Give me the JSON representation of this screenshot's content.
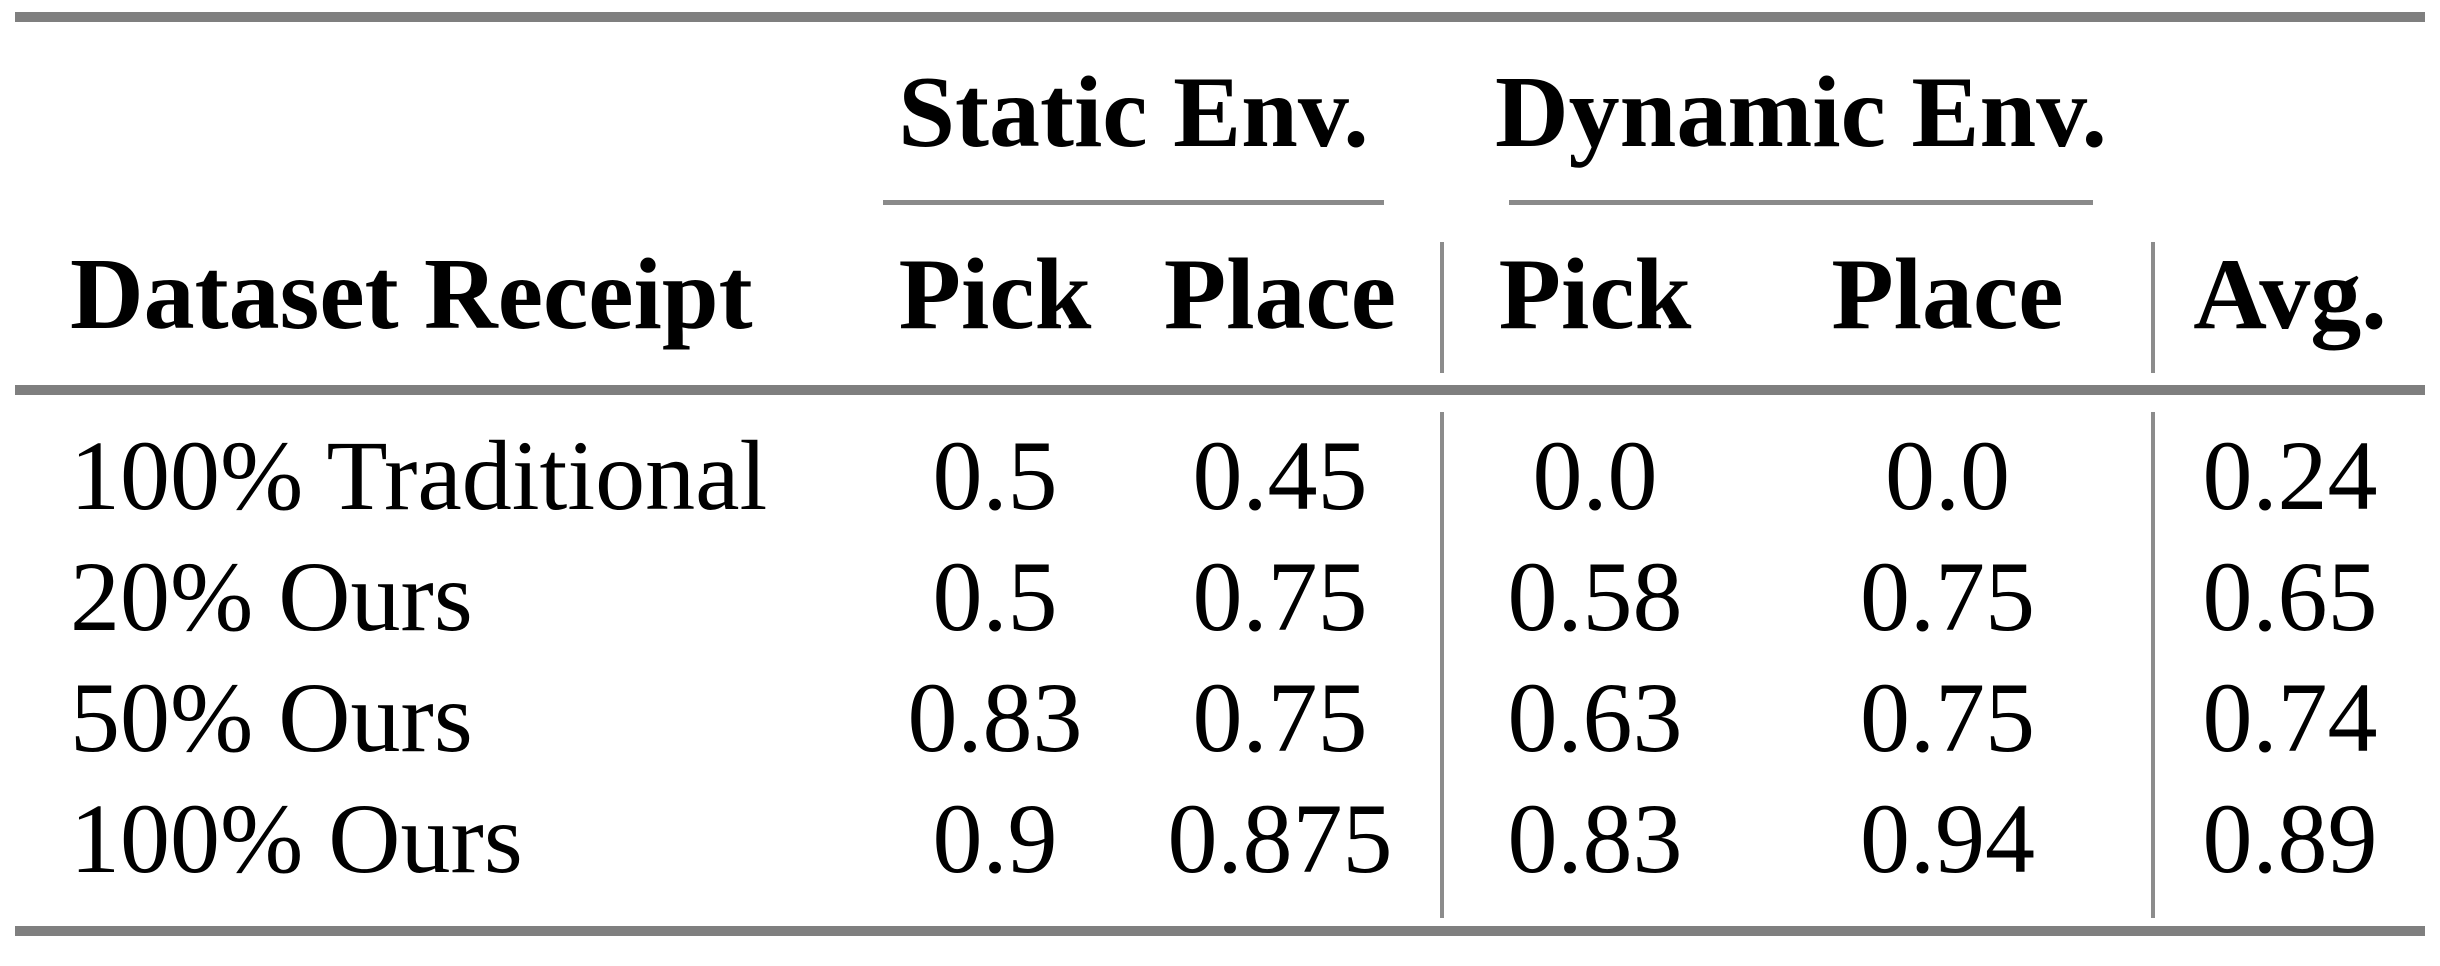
{
  "table": {
    "group_headers": {
      "static": "Static Env.",
      "dynamic": "Dynamic Env."
    },
    "columns": {
      "row_label": "Dataset Receipt",
      "static_pick": "Pick",
      "static_place": "Place",
      "dynamic_pick": "Pick",
      "dynamic_place": "Place",
      "avg": "Avg."
    },
    "rows": [
      {
        "label": "100% Traditional",
        "static_pick": "0.5",
        "static_place": "0.45",
        "dynamic_pick": "0.0",
        "dynamic_place": "0.0",
        "avg": "0.24"
      },
      {
        "label": "20% Ours",
        "static_pick": "0.5",
        "static_place": "0.75",
        "dynamic_pick": "0.58",
        "dynamic_place": "0.75",
        "avg": "0.65"
      },
      {
        "label": "50% Ours",
        "static_pick": "0.83",
        "static_place": "0.75",
        "dynamic_pick": "0.63",
        "dynamic_place": "0.75",
        "avg": "0.74"
      },
      {
        "label": "100% Ours",
        "static_pick": "0.9",
        "static_place": "0.875",
        "dynamic_pick": "0.83",
        "dynamic_place": "0.94",
        "avg": "0.89"
      }
    ],
    "colors": {
      "text": "#000000",
      "background": "#ffffff",
      "thick_rule_gray": "#7f7f7f",
      "thin_rule_gray": "#8c8c8c"
    }
  },
  "chart_data": {
    "type": "table",
    "title": "",
    "column_groups": [
      {
        "label": "Static Env.",
        "columns": [
          "Pick",
          "Place"
        ]
      },
      {
        "label": "Dynamic Env.",
        "columns": [
          "Pick",
          "Place"
        ]
      }
    ],
    "columns": [
      "Dataset Receipt",
      "Static Env. Pick",
      "Static Env. Place",
      "Dynamic Env. Pick",
      "Dynamic Env. Place",
      "Avg."
    ],
    "rows": [
      [
        "100% Traditional",
        0.5,
        0.45,
        0.0,
        0.0,
        0.24
      ],
      [
        "20% Ours",
        0.5,
        0.75,
        0.58,
        0.75,
        0.65
      ],
      [
        "50% Ours",
        0.83,
        0.75,
        0.63,
        0.75,
        0.74
      ],
      [
        "100% Ours",
        0.9,
        0.875,
        0.83,
        0.94,
        0.89
      ]
    ]
  }
}
